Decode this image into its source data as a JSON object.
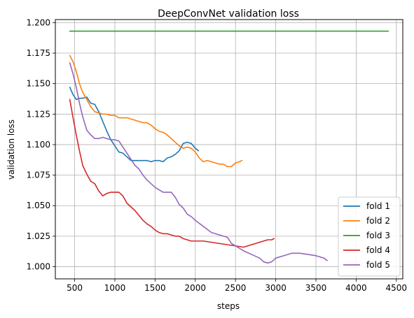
{
  "chart_data": {
    "type": "line",
    "title": "DeepConvNet validation loss",
    "xlabel": "steps",
    "ylabel": "validation loss",
    "xlim": [
      260,
      4580
    ],
    "ylim": [
      0.99,
      1.2025
    ],
    "xticks": [
      500,
      1000,
      1500,
      2000,
      2500,
      3000,
      3500,
      4000,
      4500
    ],
    "yticks": [
      1.0,
      1.025,
      1.05,
      1.075,
      1.1,
      1.125,
      1.15,
      1.175,
      1.2
    ],
    "xtick_labels": [
      "500",
      "1000",
      "1500",
      "2000",
      "2500",
      "3000",
      "3500",
      "4000",
      "4500"
    ],
    "ytick_labels": [
      "1.000",
      "1.025",
      "1.050",
      "1.075",
      "1.100",
      "1.125",
      "1.150",
      "1.175",
      "1.200"
    ],
    "grid": true,
    "legend_position": "lower-right",
    "series": [
      {
        "name": "fold 1",
        "color": "#1f77b4",
        "x": [
          440,
          480,
          520,
          560,
          600,
          650,
          700,
          750,
          800,
          850,
          900,
          950,
          1000,
          1050,
          1100,
          1150,
          1200,
          1250,
          1300,
          1350,
          1400,
          1450,
          1500,
          1550,
          1600,
          1650,
          1700,
          1750,
          1800,
          1850,
          1900,
          1950,
          2000,
          2040
        ],
        "y": [
          1.147,
          1.141,
          1.137,
          1.138,
          1.138,
          1.139,
          1.134,
          1.133,
          1.127,
          1.119,
          1.111,
          1.104,
          1.099,
          1.094,
          1.093,
          1.09,
          1.087,
          1.087,
          1.087,
          1.087,
          1.087,
          1.086,
          1.087,
          1.087,
          1.086,
          1.089,
          1.09,
          1.092,
          1.095,
          1.101,
          1.102,
          1.101,
          1.097,
          1.095
        ]
      },
      {
        "name": "fold 2",
        "color": "#ff7f0e",
        "x": [
          440,
          480,
          520,
          560,
          600,
          650,
          700,
          750,
          800,
          850,
          900,
          950,
          1000,
          1050,
          1100,
          1150,
          1200,
          1250,
          1300,
          1350,
          1400,
          1450,
          1500,
          1550,
          1600,
          1650,
          1700,
          1750,
          1800,
          1850,
          1900,
          1950,
          2000,
          2050,
          2100,
          2150,
          2200,
          2250,
          2300,
          2350,
          2400,
          2450,
          2500,
          2550,
          2580
        ],
        "y": [
          1.173,
          1.168,
          1.16,
          1.15,
          1.143,
          1.137,
          1.131,
          1.127,
          1.126,
          1.125,
          1.125,
          1.124,
          1.124,
          1.122,
          1.122,
          1.122,
          1.121,
          1.12,
          1.119,
          1.118,
          1.118,
          1.116,
          1.113,
          1.111,
          1.11,
          1.108,
          1.105,
          1.102,
          1.099,
          1.097,
          1.098,
          1.097,
          1.094,
          1.089,
          1.086,
          1.087,
          1.086,
          1.085,
          1.084,
          1.084,
          1.082,
          1.082,
          1.085,
          1.086,
          1.087
        ]
      },
      {
        "name": "fold 3",
        "color": "#2ca02c",
        "x": [
          440,
          4400
        ],
        "y": [
          1.193,
          1.193
        ]
      },
      {
        "name": "fold 4",
        "color": "#d62728",
        "x": [
          440,
          480,
          520,
          560,
          600,
          650,
          700,
          750,
          800,
          850,
          900,
          950,
          1000,
          1050,
          1100,
          1150,
          1200,
          1250,
          1300,
          1350,
          1400,
          1450,
          1500,
          1550,
          1600,
          1650,
          1700,
          1750,
          1800,
          1850,
          1900,
          1950,
          2000,
          2100,
          2200,
          2300,
          2400,
          2500,
          2600,
          2700,
          2800,
          2900,
          2950,
          2980
        ],
        "y": [
          1.137,
          1.122,
          1.108,
          1.095,
          1.083,
          1.076,
          1.07,
          1.068,
          1.062,
          1.058,
          1.06,
          1.061,
          1.061,
          1.061,
          1.058,
          1.052,
          1.049,
          1.046,
          1.042,
          1.038,
          1.035,
          1.033,
          1.03,
          1.028,
          1.027,
          1.027,
          1.026,
          1.025,
          1.025,
          1.023,
          1.022,
          1.021,
          1.021,
          1.021,
          1.02,
          1.019,
          1.018,
          1.017,
          1.016,
          1.018,
          1.02,
          1.022,
          1.022,
          1.023
        ]
      },
      {
        "name": "fold 5",
        "color": "#9467bd",
        "x": [
          440,
          480,
          520,
          560,
          600,
          650,
          700,
          750,
          800,
          850,
          900,
          950,
          1000,
          1050,
          1100,
          1150,
          1200,
          1250,
          1300,
          1350,
          1400,
          1450,
          1500,
          1550,
          1600,
          1650,
          1700,
          1750,
          1800,
          1850,
          1900,
          1950,
          2000,
          2100,
          2200,
          2300,
          2400,
          2450,
          2500,
          2600,
          2700,
          2800,
          2850,
          2900,
          2950,
          3000,
          3100,
          3200,
          3300,
          3400,
          3500,
          3600,
          3640
        ],
        "y": [
          1.167,
          1.158,
          1.147,
          1.134,
          1.123,
          1.112,
          1.108,
          1.105,
          1.105,
          1.106,
          1.105,
          1.104,
          1.104,
          1.103,
          1.098,
          1.093,
          1.088,
          1.083,
          1.08,
          1.075,
          1.071,
          1.068,
          1.065,
          1.063,
          1.061,
          1.061,
          1.061,
          1.057,
          1.051,
          1.048,
          1.043,
          1.041,
          1.038,
          1.033,
          1.028,
          1.026,
          1.024,
          1.019,
          1.017,
          1.013,
          1.01,
          1.007,
          1.004,
          1.003,
          1.004,
          1.007,
          1.009,
          1.011,
          1.011,
          1.01,
          1.009,
          1.007,
          1.005
        ]
      }
    ]
  }
}
